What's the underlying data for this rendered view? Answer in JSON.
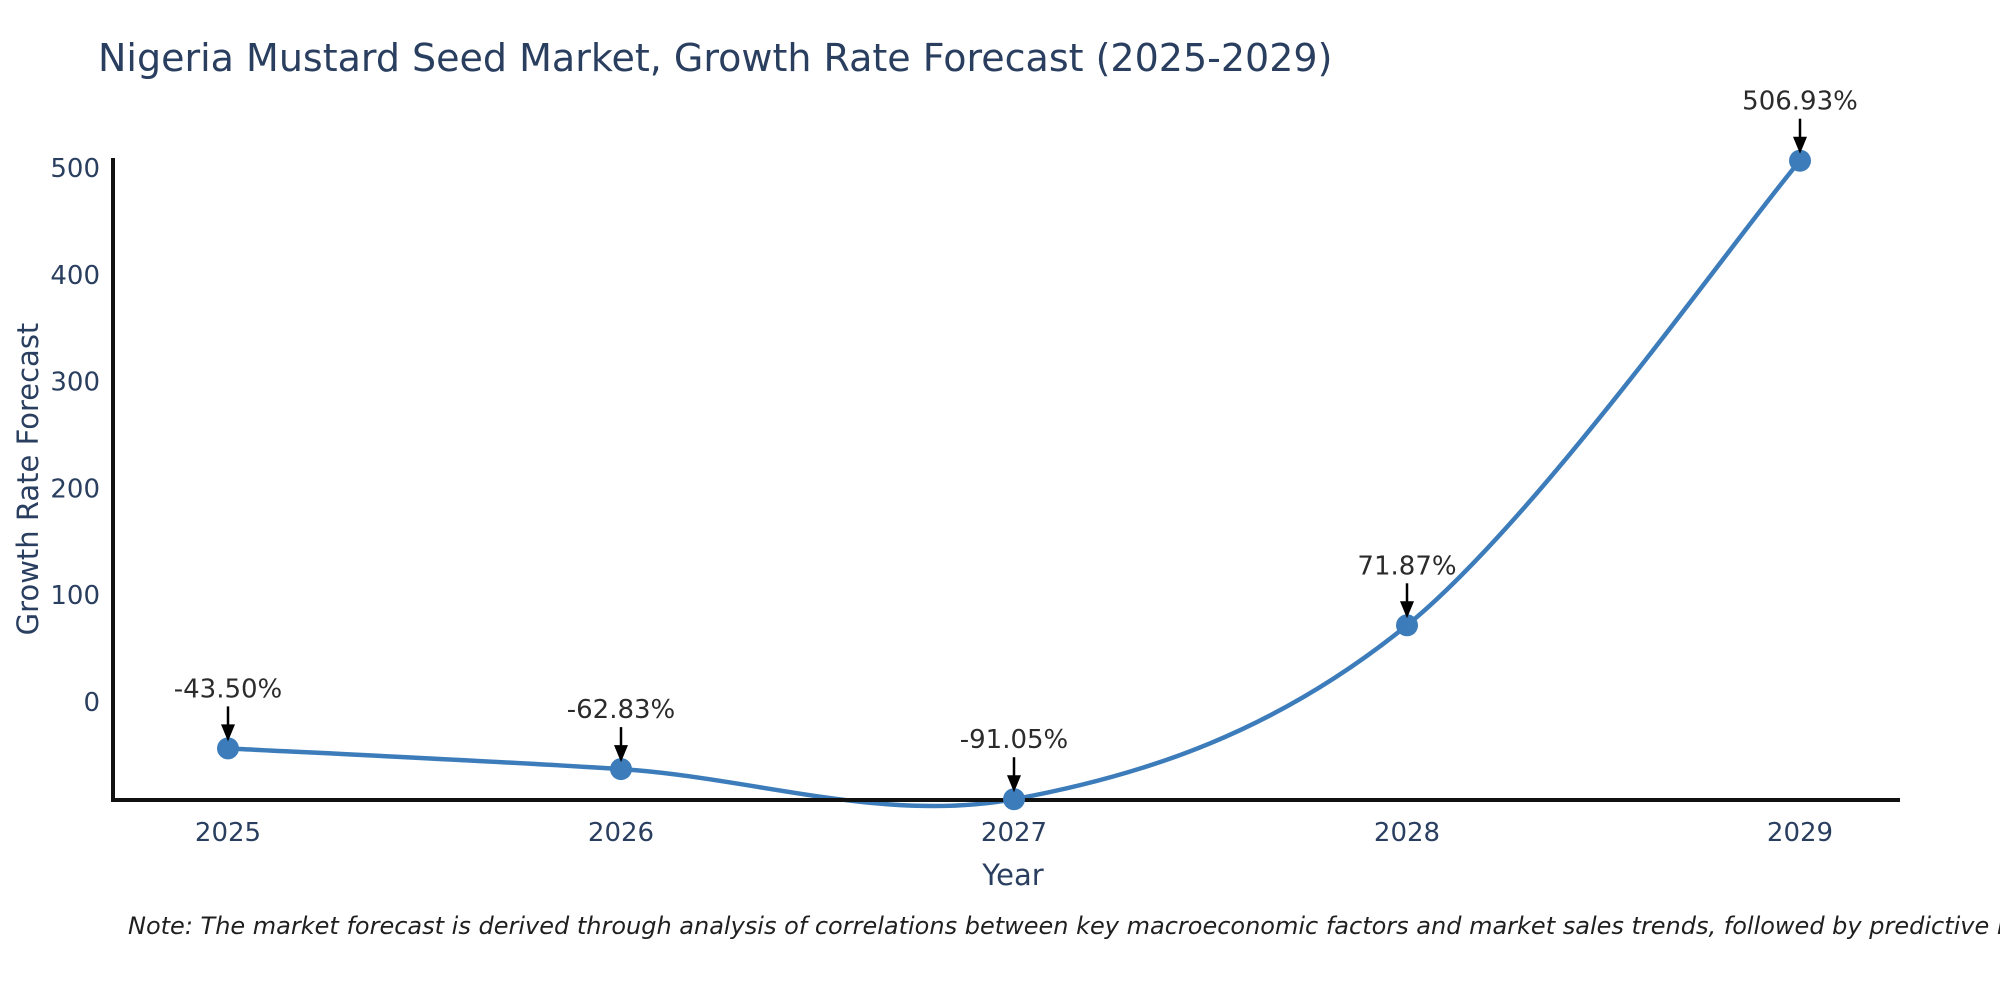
{
  "chart_data": {
    "type": "line",
    "title": "Nigeria Mustard Seed Market, Growth Rate Forecast (2025-2029)",
    "xlabel": "Year",
    "ylabel": "Growth Rate Forecast",
    "x": [
      2025,
      2026,
      2027,
      2028,
      2029
    ],
    "values": [
      -43.5,
      -62.83,
      -91.05,
      71.87,
      506.93
    ],
    "point_labels": [
      "-43.50%",
      "-62.83%",
      "-91.05%",
      "71.87%",
      "506.93%"
    ],
    "yticks": [
      0,
      100,
      200,
      300,
      400,
      500
    ],
    "ylim": [
      -91.8,
      509.5
    ],
    "grid": false,
    "legend": false,
    "line_shape": "spline",
    "note": "Note: The market forecast is derived through analysis of correlations between key macroeconomic factors and market sales trends, followed by predictive modeling to project future sales",
    "colors": {
      "line": "#3d7cba",
      "marker": "#3d7cba",
      "axis": "#111111",
      "title_text": "#2a3f5f",
      "tick_text": "#2a3f5f",
      "annotation_text": "#2b2b2b",
      "arrow": "#000000",
      "background": "#ffffff"
    }
  }
}
